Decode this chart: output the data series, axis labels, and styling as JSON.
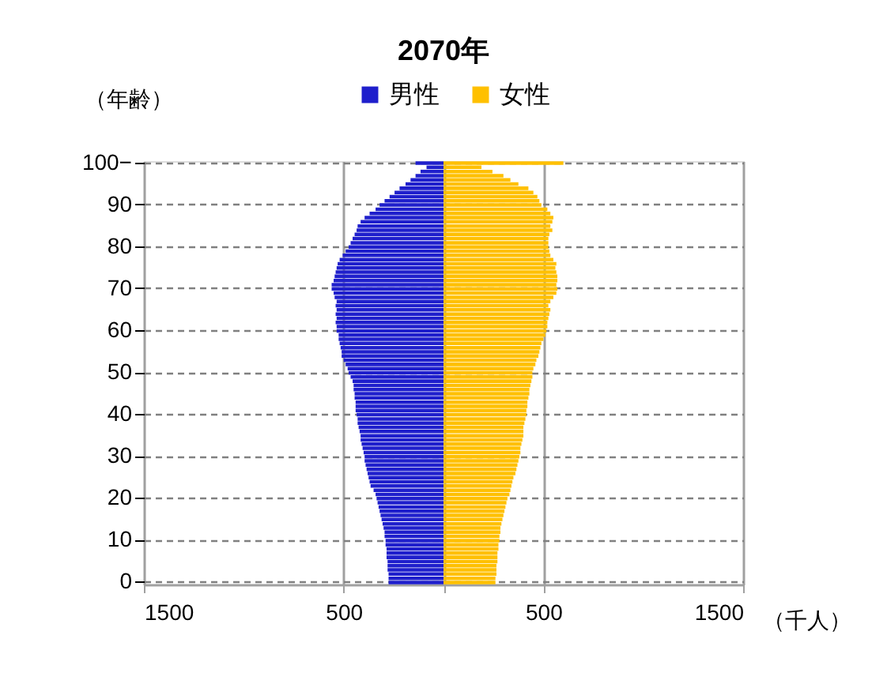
{
  "chart_data": {
    "type": "bar",
    "orientation": "horizontal",
    "title": "2070年",
    "ylabel": "（年齢）",
    "xlabel": "（千人）",
    "categories": [
      "100−",
      null,
      null,
      null,
      null,
      null,
      null,
      null,
      null,
      null,
      "90",
      null,
      null,
      null,
      null,
      null,
      null,
      null,
      null,
      null,
      "80",
      null,
      null,
      null,
      null,
      null,
      null,
      null,
      null,
      null,
      "70",
      null,
      null,
      null,
      null,
      null,
      null,
      null,
      null,
      null,
      "60",
      null,
      null,
      null,
      null,
      null,
      null,
      null,
      null,
      null,
      "50",
      null,
      null,
      null,
      null,
      null,
      null,
      null,
      null,
      null,
      "40",
      null,
      null,
      null,
      null,
      null,
      null,
      null,
      null,
      null,
      "30",
      null,
      null,
      null,
      null,
      null,
      null,
      null,
      null,
      null,
      "20",
      null,
      null,
      null,
      null,
      null,
      null,
      null,
      null,
      null,
      "10",
      null,
      null,
      null,
      null,
      null,
      null,
      null,
      null,
      null,
      "0"
    ],
    "series": [
      {
        "name": "男性",
        "color": "#1f1fcc",
        "values": [
          -140,
          -85,
          -115,
          -140,
          -165,
          -190,
          -220,
          -245,
          -270,
          -295,
          -320,
          -340,
          -370,
          -395,
          -415,
          -430,
          -435,
          -445,
          -455,
          -465,
          -475,
          -490,
          -505,
          -520,
          -530,
          -535,
          -540,
          -545,
          -550,
          -560,
          -560,
          -550,
          -545,
          -535,
          -540,
          -535,
          -540,
          -535,
          -540,
          -535,
          -535,
          -525,
          -525,
          -520,
          -515,
          -510,
          -510,
          -500,
          -490,
          -480,
          -475,
          -465,
          -455,
          -450,
          -450,
          -445,
          -445,
          -440,
          -440,
          -440,
          -435,
          -430,
          -430,
          -425,
          -420,
          -415,
          -415,
          -410,
          -405,
          -400,
          -395,
          -395,
          -390,
          -385,
          -380,
          -375,
          -370,
          -365,
          -350,
          -340,
          -335,
          -330,
          -325,
          -320,
          -315,
          -310,
          -305,
          -300,
          -295,
          -295,
          -290,
          -290,
          -285,
          -285,
          -285,
          -280,
          -280,
          -280,
          -275,
          -275,
          -275
        ]
      },
      {
        "name": "女性",
        "color": "#ffc000",
        "values": [
          600,
          190,
          245,
          300,
          335,
          375,
          425,
          450,
          470,
          480,
          490,
          520,
          535,
          550,
          545,
          535,
          545,
          530,
          525,
          525,
          525,
          530,
          535,
          550,
          565,
          560,
          565,
          570,
          570,
          565,
          570,
          565,
          550,
          535,
          525,
          535,
          530,
          525,
          520,
          520,
          515,
          510,
          500,
          490,
          485,
          480,
          475,
          465,
          460,
          450,
          445,
          445,
          440,
          435,
          430,
          430,
          425,
          420,
          420,
          415,
          415,
          410,
          405,
          400,
          400,
          400,
          395,
          390,
          385,
          385,
          380,
          375,
          370,
          365,
          360,
          350,
          345,
          340,
          335,
          330,
          320,
          315,
          310,
          305,
          300,
          295,
          290,
          285,
          285,
          280,
          280,
          275,
          275,
          270,
          270,
          270,
          265,
          265,
          265,
          260,
          260
        ]
      }
    ],
    "xlim": [
      -1500,
      1500
    ],
    "xticks": [
      {
        "value": -1500,
        "label": "1500"
      },
      {
        "value": -500,
        "label": "500"
      },
      {
        "value": 0,
        "label": null
      },
      {
        "value": 500,
        "label": "500"
      },
      {
        "value": 1500,
        "label": "1500"
      }
    ],
    "grid": true,
    "legend": "top",
    "stacked": true
  }
}
